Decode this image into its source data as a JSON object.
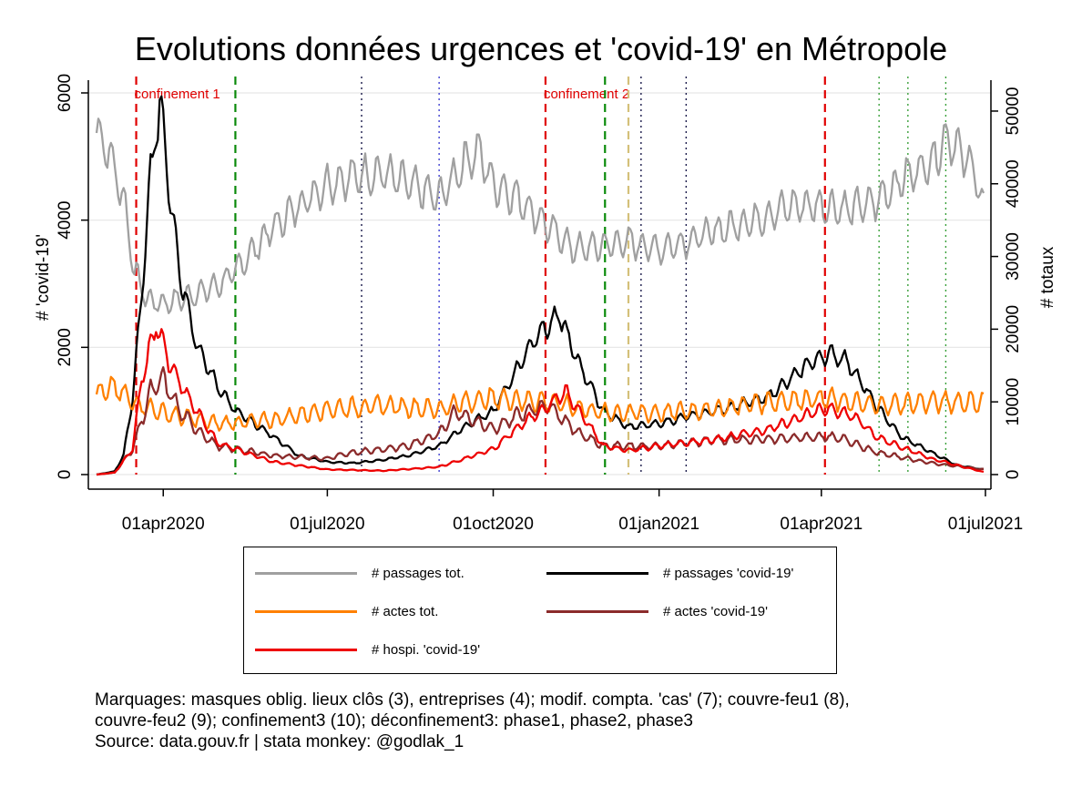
{
  "chart_data": {
    "type": "line",
    "title": "Evolutions données urgences et 'covid-19' en Métropole",
    "ylabel_left": "# 'covid-19'",
    "ylabel_right": "# totaux",
    "ylim_left": [
      0,
      6000
    ],
    "ylim_right": [
      0,
      52500
    ],
    "xlim": [
      "2020-02-24",
      "2021-06-30"
    ],
    "y_left_ticks": [
      0,
      2000,
      4000,
      6000
    ],
    "y_right_ticks": [
      0,
      10000,
      20000,
      30000,
      40000,
      50000
    ],
    "x_ticks": [
      {
        "date": "2020-04-01",
        "label": "01apr2020"
      },
      {
        "date": "2020-07-01",
        "label": "01jul2020"
      },
      {
        "date": "2020-10-01",
        "label": "01oct2020"
      },
      {
        "date": "2021-01-01",
        "label": "01jan2021"
      },
      {
        "date": "2021-04-01",
        "label": "01apr2021"
      },
      {
        "date": "2021-07-01",
        "label": "01jul2021"
      }
    ],
    "grid": true,
    "legend_position": "bottom",
    "series": [
      {
        "name": "# passages tot.",
        "axis": "right",
        "color": "#a0a0a0",
        "points": [
          [
            "2020-02-24",
            47000
          ],
          [
            "2020-03-01",
            45000
          ],
          [
            "2020-03-10",
            38000
          ],
          [
            "2020-03-16",
            28000
          ],
          [
            "2020-03-23",
            24000
          ],
          [
            "2020-04-01",
            23500
          ],
          [
            "2020-04-15",
            24500
          ],
          [
            "2020-05-01",
            26000
          ],
          [
            "2020-05-11",
            28000
          ],
          [
            "2020-06-01",
            34000
          ],
          [
            "2020-06-15",
            37000
          ],
          [
            "2020-07-01",
            40000
          ],
          [
            "2020-07-15",
            41000
          ],
          [
            "2020-08-01",
            41500
          ],
          [
            "2020-08-15",
            40000
          ],
          [
            "2020-09-01",
            38000
          ],
          [
            "2020-09-15",
            43000
          ],
          [
            "2020-09-23",
            44500
          ],
          [
            "2020-10-01",
            40000
          ],
          [
            "2020-10-15",
            38000
          ],
          [
            "2020-11-01",
            34000
          ],
          [
            "2020-11-15",
            31000
          ],
          [
            "2020-12-01",
            31500
          ],
          [
            "2020-12-15",
            32000
          ],
          [
            "2021-01-01",
            31000
          ],
          [
            "2021-01-15",
            32000
          ],
          [
            "2021-02-01",
            33500
          ],
          [
            "2021-02-15",
            34500
          ],
          [
            "2021-03-01",
            35500
          ],
          [
            "2021-03-15",
            37000
          ],
          [
            "2021-04-01",
            37000
          ],
          [
            "2021-04-15",
            36500
          ],
          [
            "2021-05-01",
            37500
          ],
          [
            "2021-05-15",
            40500
          ],
          [
            "2021-06-01",
            43000
          ],
          [
            "2021-06-10",
            46500
          ],
          [
            "2021-06-25",
            42000
          ],
          [
            "2021-06-30",
            36000
          ]
        ]
      },
      {
        "name": "# passages 'covid-19'",
        "axis": "left",
        "color": "#000000",
        "points": [
          [
            "2020-02-24",
            0
          ],
          [
            "2020-03-05",
            50
          ],
          [
            "2020-03-10",
            300
          ],
          [
            "2020-03-15",
            1200
          ],
          [
            "2020-03-20",
            2800
          ],
          [
            "2020-03-25",
            4700
          ],
          [
            "2020-03-30",
            5900
          ],
          [
            "2020-04-05",
            4400
          ],
          [
            "2020-04-10",
            3200
          ],
          [
            "2020-04-20",
            2000
          ],
          [
            "2020-05-01",
            1400
          ],
          [
            "2020-05-11",
            1000
          ],
          [
            "2020-06-01",
            600
          ],
          [
            "2020-06-15",
            300
          ],
          [
            "2020-07-01",
            200
          ],
          [
            "2020-07-15",
            180
          ],
          [
            "2020-08-01",
            230
          ],
          [
            "2020-08-15",
            300
          ],
          [
            "2020-09-01",
            450
          ],
          [
            "2020-09-15",
            750
          ],
          [
            "2020-10-01",
            1000
          ],
          [
            "2020-10-15",
            1700
          ],
          [
            "2020-10-25",
            2200
          ],
          [
            "2020-11-01",
            2350
          ],
          [
            "2020-11-07",
            2500
          ],
          [
            "2020-11-15",
            1900
          ],
          [
            "2020-12-01",
            1000
          ],
          [
            "2020-12-15",
            750
          ],
          [
            "2021-01-01",
            800
          ],
          [
            "2021-01-15",
            900
          ],
          [
            "2021-02-01",
            1000
          ],
          [
            "2021-02-15",
            1100
          ],
          [
            "2021-03-01",
            1200
          ],
          [
            "2021-03-15",
            1500
          ],
          [
            "2021-03-25",
            1750
          ],
          [
            "2021-04-05",
            1900
          ],
          [
            "2021-04-15",
            1800
          ],
          [
            "2021-05-01",
            1100
          ],
          [
            "2021-05-15",
            600
          ],
          [
            "2021-06-01",
            350
          ],
          [
            "2021-06-15",
            150
          ],
          [
            "2021-06-30",
            80
          ]
        ]
      },
      {
        "name": "# actes tot.",
        "axis": "right",
        "color": "#ff8000",
        "points": [
          [
            "2020-02-24",
            11000
          ],
          [
            "2020-03-05",
            12000
          ],
          [
            "2020-03-15",
            10000
          ],
          [
            "2020-04-01",
            8500
          ],
          [
            "2020-05-01",
            7000
          ],
          [
            "2020-06-01",
            7500
          ],
          [
            "2020-07-01",
            9000
          ],
          [
            "2020-08-01",
            9500
          ],
          [
            "2020-09-01",
            9000
          ],
          [
            "2020-09-15",
            10000
          ],
          [
            "2020-10-01",
            10500
          ],
          [
            "2020-11-01",
            10000
          ],
          [
            "2020-12-01",
            8500
          ],
          [
            "2021-01-01",
            8500
          ],
          [
            "2021-02-01",
            9000
          ],
          [
            "2021-03-01",
            10000
          ],
          [
            "2021-04-01",
            10500
          ],
          [
            "2021-05-01",
            9500
          ],
          [
            "2021-06-01",
            10000
          ],
          [
            "2021-06-30",
            10000
          ]
        ]
      },
      {
        "name": "# actes 'covid-19'",
        "axis": "left",
        "color": "#8b2b2b",
        "points": [
          [
            "2020-02-24",
            0
          ],
          [
            "2020-03-05",
            30
          ],
          [
            "2020-03-15",
            400
          ],
          [
            "2020-03-25",
            1300
          ],
          [
            "2020-04-01",
            1500
          ],
          [
            "2020-04-10",
            1000
          ],
          [
            "2020-04-20",
            700
          ],
          [
            "2020-05-01",
            450
          ],
          [
            "2020-06-01",
            300
          ],
          [
            "2020-07-01",
            250
          ],
          [
            "2020-07-15",
            350
          ],
          [
            "2020-08-01",
            400
          ],
          [
            "2020-08-15",
            450
          ],
          [
            "2020-09-01",
            650
          ],
          [
            "2020-09-10",
            1000
          ],
          [
            "2020-09-20",
            850
          ],
          [
            "2020-10-01",
            700
          ],
          [
            "2020-10-15",
            950
          ],
          [
            "2020-11-01",
            1100
          ],
          [
            "2020-11-15",
            700
          ],
          [
            "2020-12-01",
            450
          ],
          [
            "2021-01-01",
            450
          ],
          [
            "2021-02-01",
            550
          ],
          [
            "2021-03-01",
            550
          ],
          [
            "2021-04-01",
            600
          ],
          [
            "2021-04-15",
            550
          ],
          [
            "2021-05-01",
            350
          ],
          [
            "2021-06-01",
            180
          ],
          [
            "2021-06-30",
            80
          ]
        ]
      },
      {
        "name": "# hospi. 'covid-19'",
        "axis": "left",
        "color": "#ee0000",
        "points": [
          [
            "2020-02-24",
            0
          ],
          [
            "2020-03-05",
            30
          ],
          [
            "2020-03-15",
            400
          ],
          [
            "2020-03-20",
            1500
          ],
          [
            "2020-03-25",
            2000
          ],
          [
            "2020-03-28",
            2400
          ],
          [
            "2020-04-05",
            1700
          ],
          [
            "2020-04-15",
            1200
          ],
          [
            "2020-05-01",
            500
          ],
          [
            "2020-06-01",
            200
          ],
          [
            "2020-07-01",
            80
          ],
          [
            "2020-08-01",
            60
          ],
          [
            "2020-09-01",
            120
          ],
          [
            "2020-09-15",
            250
          ],
          [
            "2020-10-01",
            400
          ],
          [
            "2020-10-15",
            750
          ],
          [
            "2020-11-01",
            1100
          ],
          [
            "2020-11-10",
            1300
          ],
          [
            "2020-11-20",
            900
          ],
          [
            "2020-12-01",
            450
          ],
          [
            "2020-12-15",
            380
          ],
          [
            "2021-01-01",
            450
          ],
          [
            "2021-02-01",
            550
          ],
          [
            "2021-03-01",
            700
          ],
          [
            "2021-03-20",
            900
          ],
          [
            "2021-04-05",
            1050
          ],
          [
            "2021-04-20",
            900
          ],
          [
            "2021-05-01",
            600
          ],
          [
            "2021-06-01",
            250
          ],
          [
            "2021-06-30",
            40
          ]
        ]
      }
    ],
    "markers": [
      {
        "date": "2020-03-17",
        "style": "red-dashed",
        "label": "confinement 1"
      },
      {
        "date": "2020-05-11",
        "style": "green-dashed"
      },
      {
        "date": "2020-07-20",
        "style": "navy-dotted"
      },
      {
        "date": "2020-09-01",
        "style": "blue-dotted"
      },
      {
        "date": "2020-10-30",
        "style": "red-dashed",
        "label": "confinement 2"
      },
      {
        "date": "2020-12-02",
        "style": "green-dashed"
      },
      {
        "date": "2020-12-15",
        "style": "khaki-dashed"
      },
      {
        "date": "2020-12-22",
        "style": "navy-dotted"
      },
      {
        "date": "2021-01-16",
        "style": "navy-dotted"
      },
      {
        "date": "2021-04-03",
        "style": "red-dashed"
      },
      {
        "date": "2021-05-03",
        "style": "green-dotted"
      },
      {
        "date": "2021-05-19",
        "style": "green-dotted"
      },
      {
        "date": "2021-06-09",
        "style": "green-dotted"
      }
    ]
  },
  "legend": [
    "# passages tot.",
    "# passages 'covid-19'",
    "# actes tot.",
    "# actes 'covid-19'",
    "# hospi. 'covid-19'"
  ],
  "footnote": {
    "line1": "Marquages: masques oblig. lieux clôs (3), entreprises (4); modif. compta. 'cas' (7); couvre-feu1 (8),",
    "line2": "couvre-feu2 (9); confinement3 (10); déconfinement3: phase1, phase2, phase3",
    "line3": "Source: data.gouv.fr | stata monkey: @godlak_1"
  },
  "colors": {
    "passages_tot": "#a0a0a0",
    "passages_covid": "#000000",
    "actes_tot": "#ff8000",
    "actes_covid": "#8b2b2b",
    "hospi_covid": "#ee0000"
  }
}
